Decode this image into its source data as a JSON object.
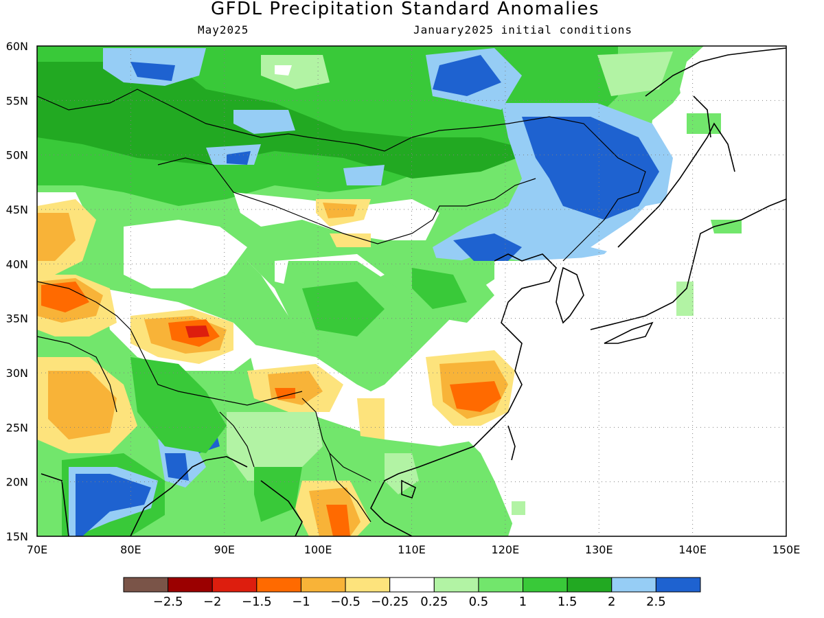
{
  "title": "GFDL Precipitation Standard Anomalies",
  "subtitle_left": "May2025",
  "subtitle_right": "January2025 initial conditions",
  "map": {
    "lon_range": [
      70,
      150
    ],
    "lat_range": [
      15,
      60
    ],
    "lon_ticks": [
      "70E",
      "80E",
      "90E",
      "100E",
      "110E",
      "120E",
      "130E",
      "140E",
      "150E"
    ],
    "lat_ticks": [
      "60N",
      "55N",
      "50N",
      "45N",
      "40N",
      "35N",
      "30N",
      "25N",
      "20N",
      "15N"
    ],
    "gridlines": "dotted"
  },
  "legend": {
    "colors": [
      "#7a5448",
      "#9b0000",
      "#dd1e0e",
      "#ff6a00",
      "#f8b338",
      "#fde37c",
      "#ffffff",
      "#b2f3a4",
      "#72e66c",
      "#39c939",
      "#22a922",
      "#96cdf5",
      "#1e62d0"
    ],
    "labels": [
      "-2.5",
      "-2",
      "-1.5",
      "-1",
      "-0.5",
      "-0.25",
      "0.25",
      "0.5",
      "1",
      "1.5",
      "2",
      "2.5"
    ]
  },
  "regions": [
    {
      "name": "siberia-west",
      "lon": [
        70,
        92
      ],
      "lat": [
        48,
        60
      ],
      "category": "green"
    },
    {
      "name": "mongolia-north",
      "lon": [
        93,
        110
      ],
      "lat": [
        48,
        55
      ],
      "category": "green"
    },
    {
      "name": "baikal-blue",
      "lon": [
        82,
        90
      ],
      "lat": [
        55,
        59
      ],
      "category": "blue"
    },
    {
      "name": "amur-blue",
      "lon": [
        121,
        134
      ],
      "lat": [
        44,
        56
      ],
      "category": "blue"
    },
    {
      "name": "manchuria-green",
      "lon": [
        112,
        124
      ],
      "lat": [
        40,
        48
      ],
      "category": "green"
    },
    {
      "name": "tibet-dry",
      "lon": [
        83,
        92
      ],
      "lat": [
        31,
        36
      ],
      "category": "dry"
    },
    {
      "name": "south-china-dry",
      "lon": [
        113,
        121
      ],
      "lat": [
        25,
        31
      ],
      "category": "dry"
    },
    {
      "name": "indochina-dry",
      "lon": [
        99,
        104
      ],
      "lat": [
        15,
        19
      ],
      "category": "dry"
    },
    {
      "name": "west-india-dry",
      "lon": [
        70,
        80
      ],
      "lat": [
        22,
        30
      ],
      "category": "dry"
    },
    {
      "name": "pakistan-dry",
      "lon": [
        70,
        75
      ],
      "lat": [
        35,
        38
      ],
      "category": "very-dry"
    },
    {
      "name": "bay-of-bengal-blue",
      "lon": [
        74,
        85
      ],
      "lat": [
        15,
        23
      ],
      "category": "blue"
    }
  ]
}
